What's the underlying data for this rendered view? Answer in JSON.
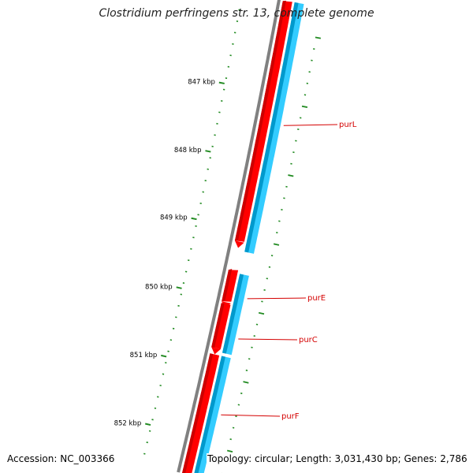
{
  "title": "Clostridium perfringens str. 13, complete genome",
  "footer": {
    "accession": "Accession: NC_003366",
    "summary": "Topology: circular; Length: 3,031,430 bp; Genes: 2,786"
  },
  "ruler": {
    "unit": "kbp",
    "labels": [
      {
        "kbp": 847,
        "label": "847 kbp"
      },
      {
        "kbp": 848,
        "label": "848 kbp"
      },
      {
        "kbp": 849,
        "label": "849 kbp"
      },
      {
        "kbp": 850,
        "label": "850 kbp"
      },
      {
        "kbp": 851,
        "label": "851 kbp"
      },
      {
        "kbp": 852,
        "label": "852 kbp"
      }
    ]
  },
  "genes": [
    {
      "name": "purL",
      "label_color": "#d40000"
    },
    {
      "name": "purE",
      "label_color": "#d40000"
    },
    {
      "name": "purC",
      "label_color": "#d40000"
    },
    {
      "name": "purF",
      "label_color": "#d40000"
    }
  ],
  "colors": {
    "backbone": "#808080",
    "forward_strand": "#ff0000",
    "forward_strand_dark": "#cc0000",
    "gene_track": "#33ccff",
    "gene_track_dark": "#0099cc",
    "ticks": "#228b22",
    "labels": "#d40000"
  }
}
